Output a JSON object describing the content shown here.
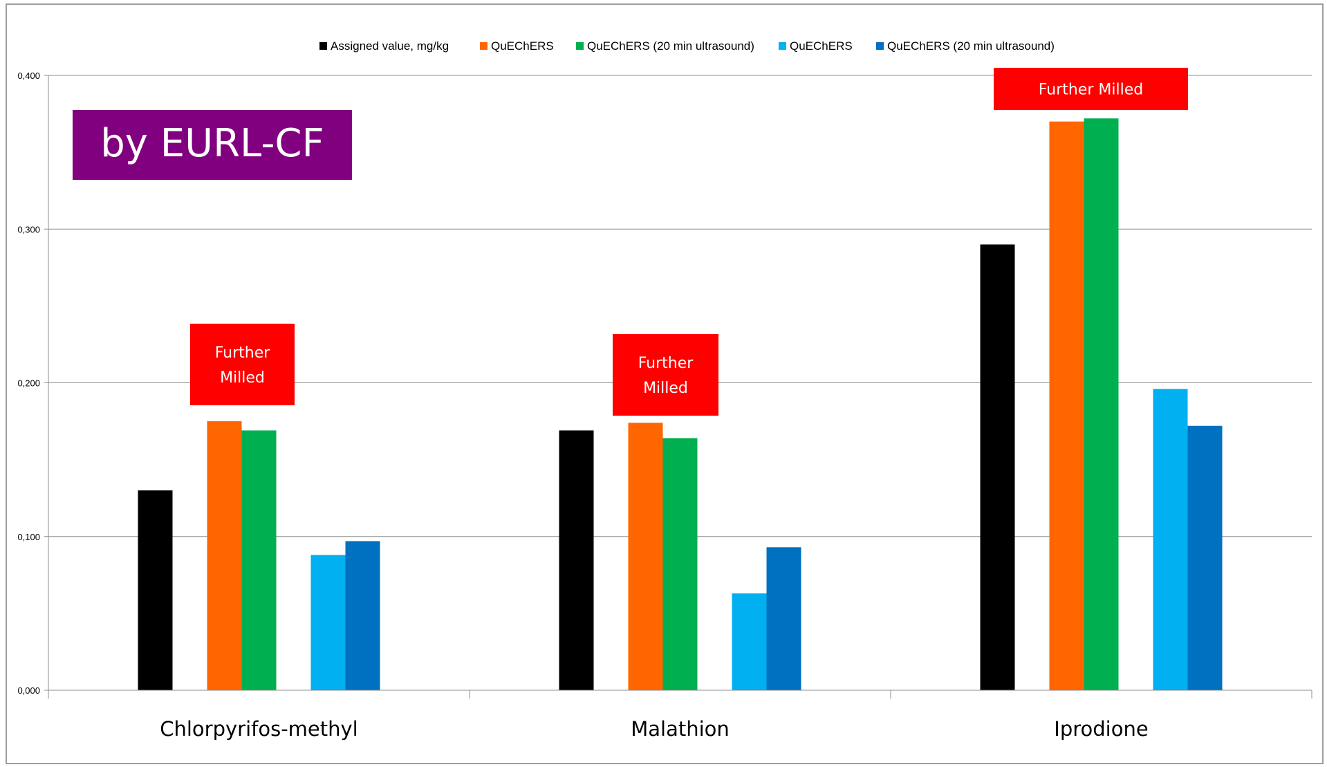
{
  "chart_data": {
    "type": "bar",
    "categories": [
      "Chlorpyrifos-methyl",
      "Malathion",
      "Iprodione"
    ],
    "series": [
      {
        "name": "Assigned value, mg/kg",
        "color": "#000000",
        "values": [
          0.13,
          0.169,
          0.29
        ]
      },
      {
        "name": "QuEChERS",
        "color": "#ff6600",
        "values": [
          0.175,
          0.174,
          0.37
        ]
      },
      {
        "name": "QuEChERS (20 min ultrasound)",
        "color": "#00b050",
        "values": [
          0.169,
          0.164,
          0.372
        ]
      },
      {
        "name": "QuEChERS",
        "color": "#00b0f0",
        "values": [
          0.088,
          0.063,
          0.196
        ]
      },
      {
        "name": "QuEChERS (20 min ultrasound)",
        "color": "#0070c0",
        "values": [
          0.097,
          0.093,
          0.172
        ]
      }
    ],
    "yticks": [
      "0,000",
      "0,100",
      "0,200",
      "0,300",
      "0,400"
    ],
    "ytick_values": [
      0,
      0.1,
      0.2,
      0.3,
      0.4
    ],
    "ylim": [
      0,
      0.4
    ],
    "grid": true,
    "legend_position": "top",
    "badge": {
      "text": "by EURL-CF",
      "color": "#800080"
    },
    "annotations": [
      {
        "category": "Chlorpyrifos-methyl",
        "lines": [
          "Further",
          "Milled"
        ],
        "color": "#ff0000"
      },
      {
        "category": "Malathion",
        "lines": [
          "Further",
          "Milled"
        ],
        "color": "#ff0000"
      },
      {
        "category": "Iprodione",
        "lines": [
          "Further Milled"
        ],
        "color": "#ff0000"
      }
    ]
  }
}
